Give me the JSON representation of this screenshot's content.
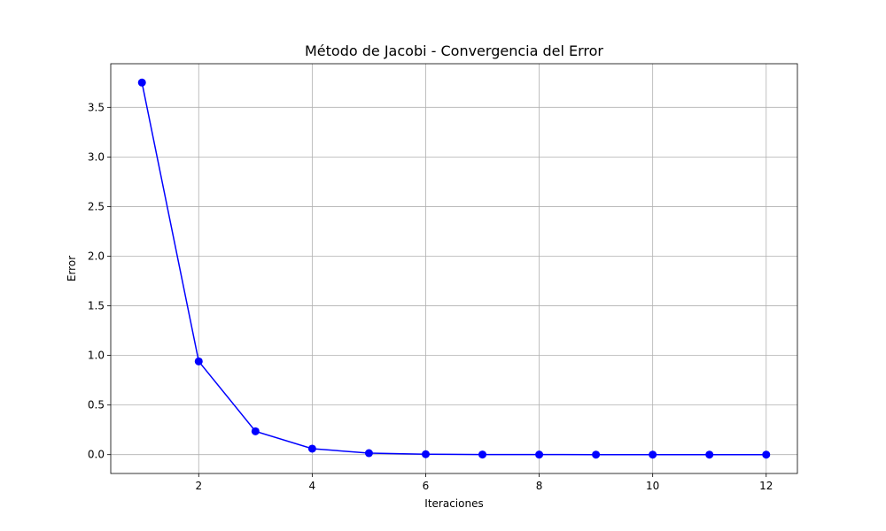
{
  "chart_data": {
    "type": "line",
    "title": "Método de Jacobi - Convergencia del Error",
    "xlabel": "Iteraciones",
    "ylabel": "Error",
    "xlim": [
      0.45,
      12.55
    ],
    "ylim": [
      -0.19,
      3.94
    ],
    "xticks": [
      2,
      4,
      6,
      8,
      10,
      12
    ],
    "xtick_labels": [
      "2",
      "4",
      "6",
      "8",
      "10",
      "12"
    ],
    "yticks": [
      0.0,
      0.5,
      1.0,
      1.5,
      2.0,
      2.5,
      3.0,
      3.5
    ],
    "ytick_labels": [
      "0.0",
      "0.5",
      "1.0",
      "1.5",
      "2.0",
      "2.5",
      "3.0",
      "3.5"
    ],
    "grid": true,
    "series": [
      {
        "color": "#0000ff",
        "marker": "circle",
        "x": [
          1,
          2,
          3,
          4,
          5,
          6,
          7,
          8,
          9,
          10,
          11,
          12
        ],
        "y": [
          3.75,
          0.94,
          0.235,
          0.06,
          0.015,
          0.004,
          0.001,
          0.0003,
          0.0001,
          2e-05,
          5e-06,
          1e-06
        ]
      }
    ]
  }
}
